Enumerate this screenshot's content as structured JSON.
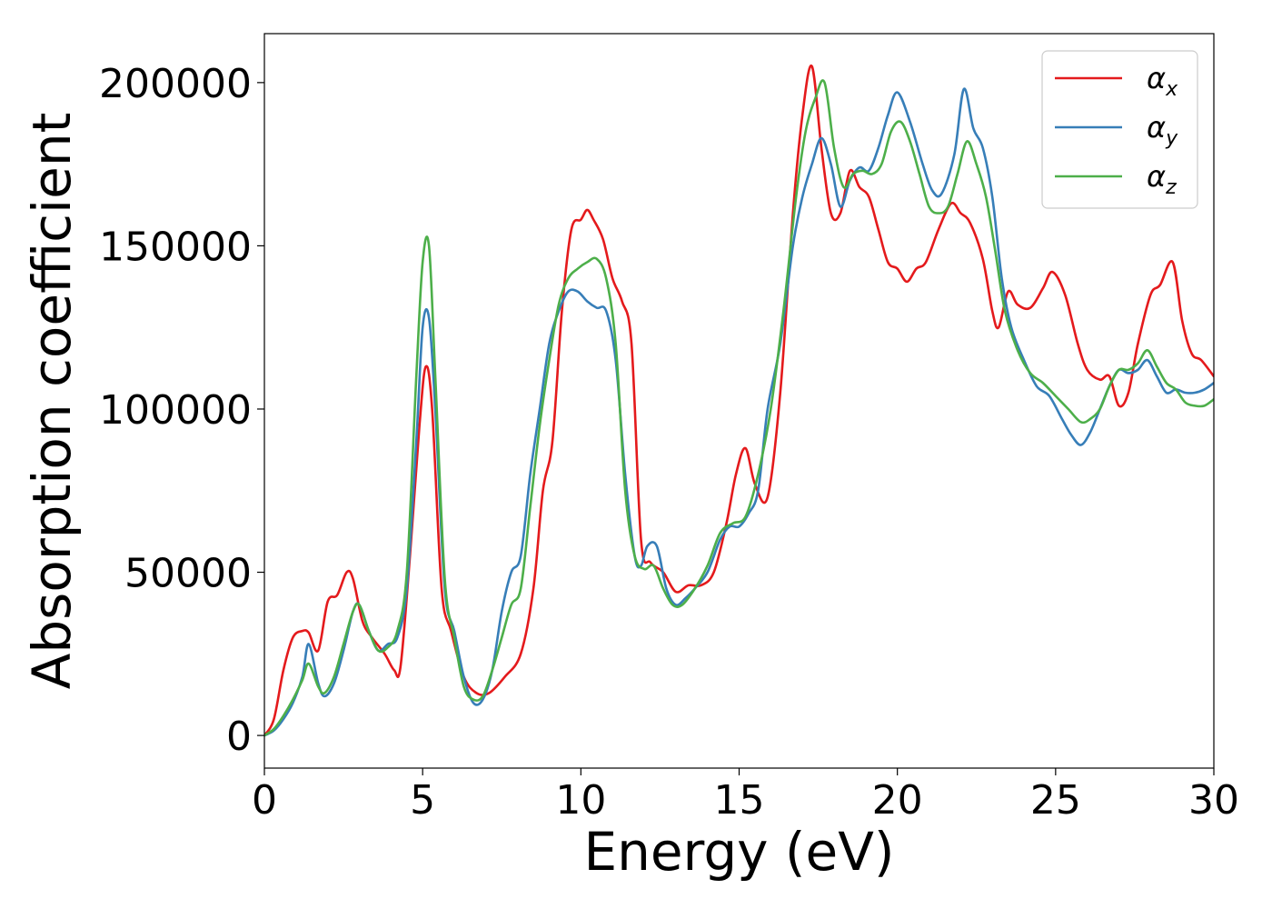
{
  "chart_data": {
    "type": "line",
    "title": "",
    "xlabel": "Energy (eV)",
    "ylabel": "Absorption coefficient",
    "xlim": [
      0,
      30
    ],
    "ylim": [
      -10000,
      215000
    ],
    "xticks": [
      0,
      5,
      10,
      15,
      20,
      25,
      30
    ],
    "xtick_labels": [
      "0",
      "5",
      "10",
      "15",
      "20",
      "25",
      "30"
    ],
    "yticks": [
      0,
      50000,
      100000,
      150000,
      200000
    ],
    "ytick_labels": [
      "0",
      "50000",
      "100000",
      "150000",
      "200000"
    ],
    "grid": false,
    "legend_position": "top-right",
    "series": [
      {
        "name": "αx",
        "symbol": "α",
        "subscript": "x",
        "color": "#e41a1c",
        "x": [
          0,
          0.3,
          0.6,
          0.9,
          1.2,
          1.4,
          1.7,
          2.0,
          2.3,
          2.6,
          2.8,
          3.1,
          3.4,
          3.8,
          4.1,
          4.3,
          4.6,
          4.9,
          5.1,
          5.3,
          5.6,
          5.9,
          6.3,
          6.7,
          7.1,
          7.6,
          8.1,
          8.5,
          8.8,
          9.1,
          9.4,
          9.7,
          10.0,
          10.2,
          10.4,
          10.7,
          11.0,
          11.3,
          11.6,
          11.9,
          12.2,
          12.6,
          13.0,
          13.4,
          13.8,
          14.2,
          14.6,
          14.9,
          15.2,
          15.5,
          15.9,
          16.3,
          16.7,
          17.0,
          17.3,
          17.6,
          17.9,
          18.2,
          18.5,
          18.8,
          19.1,
          19.4,
          19.7,
          20.0,
          20.3,
          20.6,
          20.9,
          21.3,
          21.7,
          22.0,
          22.3,
          22.7,
          23.0,
          23.2,
          23.5,
          23.8,
          24.2,
          24.6,
          24.9,
          25.3,
          25.7,
          26.0,
          26.4,
          26.7,
          27.0,
          27.3,
          27.6,
          28.0,
          28.3,
          28.7,
          29.0,
          29.3,
          29.6,
          30.0
        ],
        "y": [
          0,
          5000,
          20000,
          30000,
          32000,
          31500,
          26000,
          41000,
          43000,
          50000,
          48000,
          35000,
          30000,
          25000,
          20000,
          21000,
          55000,
          95000,
          113000,
          100000,
          45000,
          32000,
          18000,
          13000,
          13000,
          18000,
          25000,
          45000,
          75000,
          90000,
          130000,
          155000,
          158000,
          161000,
          158000,
          152000,
          140000,
          133000,
          120000,
          60000,
          53000,
          50000,
          44000,
          46000,
          46000,
          50000,
          65000,
          80000,
          88000,
          77000,
          73000,
          105000,
          160000,
          190000,
          205000,
          180000,
          160000,
          160000,
          173000,
          168000,
          165000,
          155000,
          145000,
          143000,
          139000,
          143000,
          145000,
          155000,
          163000,
          160000,
          157000,
          146000,
          130000,
          125000,
          136000,
          132000,
          131000,
          137000,
          142000,
          135000,
          120000,
          112000,
          109000,
          110000,
          101000,
          105000,
          120000,
          135000,
          138000,
          145000,
          127000,
          117000,
          115000,
          110000
        ]
      },
      {
        "name": "αy",
        "symbol": "α",
        "subscript": "y",
        "color": "#377eb8",
        "x": [
          0,
          0.3,
          0.6,
          0.9,
          1.2,
          1.4,
          1.7,
          1.9,
          2.2,
          2.5,
          2.8,
          3.0,
          3.3,
          3.6,
          3.9,
          4.2,
          4.5,
          4.8,
          5.0,
          5.2,
          5.4,
          5.7,
          6.0,
          6.3,
          6.6,
          6.9,
          7.2,
          7.5,
          7.8,
          8.1,
          8.4,
          8.7,
          9.0,
          9.3,
          9.6,
          9.9,
          10.2,
          10.5,
          10.8,
          11.1,
          11.4,
          11.7,
          11.9,
          12.1,
          12.4,
          12.7,
          13.0,
          13.3,
          13.6,
          14.0,
          14.4,
          14.7,
          15.0,
          15.3,
          15.6,
          15.9,
          16.3,
          16.7,
          17.0,
          17.3,
          17.6,
          17.9,
          18.2,
          18.5,
          18.8,
          19.1,
          19.4,
          19.7,
          20.0,
          20.4,
          20.8,
          21.1,
          21.4,
          21.8,
          22.1,
          22.4,
          22.7,
          23.0,
          23.3,
          23.6,
          24.0,
          24.4,
          24.8,
          25.2,
          25.5,
          25.8,
          26.1,
          26.4,
          26.7,
          27.0,
          27.3,
          27.6,
          27.9,
          28.2,
          28.5,
          28.8,
          29.1,
          29.4,
          29.7,
          30.0
        ],
        "y": [
          0,
          1500,
          5000,
          10000,
          18000,
          28000,
          16000,
          12000,
          16000,
          26000,
          38000,
          40000,
          32000,
          26000,
          28000,
          30000,
          45000,
          90000,
          125000,
          128000,
          100000,
          45000,
          32000,
          18000,
          10000,
          11000,
          20000,
          38000,
          50000,
          55000,
          80000,
          100000,
          120000,
          130000,
          136000,
          136000,
          133000,
          131000,
          130000,
          115000,
          80000,
          55000,
          52000,
          58000,
          58000,
          45000,
          40000,
          42000,
          45000,
          50000,
          60000,
          64000,
          64000,
          68000,
          75000,
          100000,
          120000,
          150000,
          165000,
          175000,
          183000,
          175000,
          162000,
          170000,
          174000,
          173000,
          180000,
          190000,
          197000,
          188000,
          175000,
          167000,
          166000,
          178000,
          198000,
          186000,
          180000,
          165000,
          140000,
          125000,
          115000,
          107000,
          104000,
          97000,
          92000,
          89000,
          93000,
          100000,
          107000,
          112000,
          111000,
          112000,
          115000,
          110000,
          105000,
          106000,
          105000,
          105000,
          106000,
          108000
        ]
      },
      {
        "name": "αz",
        "symbol": "α",
        "subscript": "z",
        "color": "#4daf4a",
        "x": [
          0,
          0.3,
          0.6,
          0.9,
          1.2,
          1.4,
          1.7,
          1.9,
          2.2,
          2.5,
          2.8,
          3.0,
          3.3,
          3.6,
          3.9,
          4.2,
          4.5,
          4.8,
          5.0,
          5.2,
          5.4,
          5.7,
          6.0,
          6.3,
          6.6,
          6.9,
          7.2,
          7.5,
          7.8,
          8.1,
          8.4,
          8.7,
          9.0,
          9.3,
          9.6,
          9.9,
          10.2,
          10.5,
          10.8,
          11.1,
          11.4,
          11.7,
          12.0,
          12.3,
          12.6,
          12.9,
          13.2,
          13.6,
          14.0,
          14.4,
          14.8,
          15.2,
          15.6,
          16.0,
          16.4,
          16.8,
          17.1,
          17.4,
          17.7,
          18.0,
          18.3,
          18.6,
          18.9,
          19.2,
          19.5,
          19.8,
          20.1,
          20.4,
          20.7,
          21.0,
          21.3,
          21.6,
          21.9,
          22.2,
          22.5,
          22.8,
          23.1,
          23.4,
          23.8,
          24.2,
          24.6,
          25.0,
          25.4,
          25.8,
          26.1,
          26.4,
          26.7,
          27.0,
          27.3,
          27.6,
          27.9,
          28.2,
          28.5,
          28.8,
          29.1,
          29.4,
          29.7,
          30.0
        ],
        "y": [
          0,
          2000,
          6000,
          11000,
          17000,
          22000,
          15000,
          13000,
          18000,
          28000,
          38000,
          40000,
          32000,
          26000,
          27000,
          32000,
          50000,
          110000,
          145000,
          150000,
          110000,
          48000,
          30000,
          15000,
          11000,
          12000,
          20000,
          30000,
          40000,
          45000,
          70000,
          95000,
          115000,
          132000,
          140000,
          143000,
          145000,
          146000,
          140000,
          120000,
          75000,
          55000,
          51000,
          52000,
          45000,
          40000,
          40000,
          45000,
          52000,
          62000,
          65000,
          67000,
          80000,
          100000,
          130000,
          165000,
          185000,
          195000,
          200000,
          180000,
          168000,
          172000,
          173000,
          172000,
          175000,
          185000,
          188000,
          182000,
          172000,
          162000,
          160000,
          162000,
          172000,
          182000,
          175000,
          165000,
          148000,
          130000,
          118000,
          111000,
          108000,
          104000,
          100000,
          96000,
          97000,
          100000,
          107000,
          112000,
          112000,
          114000,
          118000,
          113000,
          108000,
          106000,
          102000,
          101000,
          101000,
          103000
        ]
      }
    ]
  }
}
